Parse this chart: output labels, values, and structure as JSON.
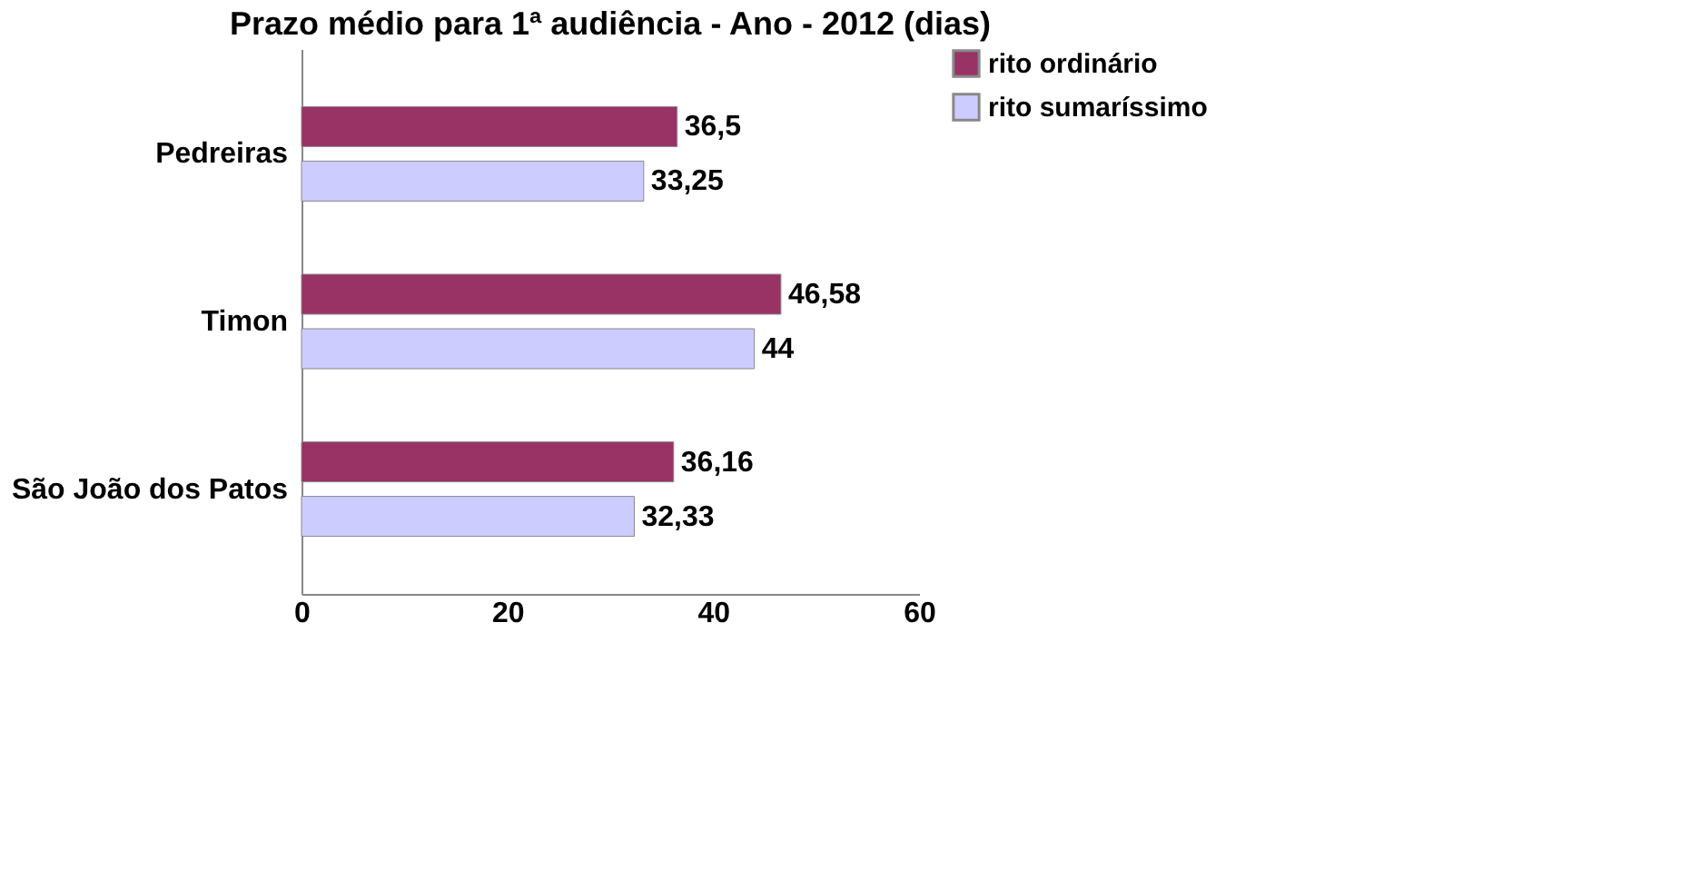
{
  "chart_data": {
    "type": "bar",
    "orientation": "horizontal",
    "title": "Prazo médio para 1ª audiência - Ano - 2012 (dias)",
    "categories": [
      "Pedreiras",
      "Timon",
      "São João dos Patos"
    ],
    "series": [
      {
        "name": "rito ordinário",
        "color": "#993366",
        "values": [
          36.5,
          46.58,
          36.16
        ],
        "value_labels": [
          "36,5",
          "46,58",
          "36,16"
        ]
      },
      {
        "name": "rito sumaríssimo",
        "color": "#ccccff",
        "values": [
          33.25,
          44,
          32.33
        ],
        "value_labels": [
          "33,25",
          "44",
          "32,33"
        ]
      }
    ],
    "xlim": [
      0,
      60
    ],
    "xticks": [
      0,
      20,
      40,
      60
    ],
    "grid": false,
    "legend": "right"
  }
}
